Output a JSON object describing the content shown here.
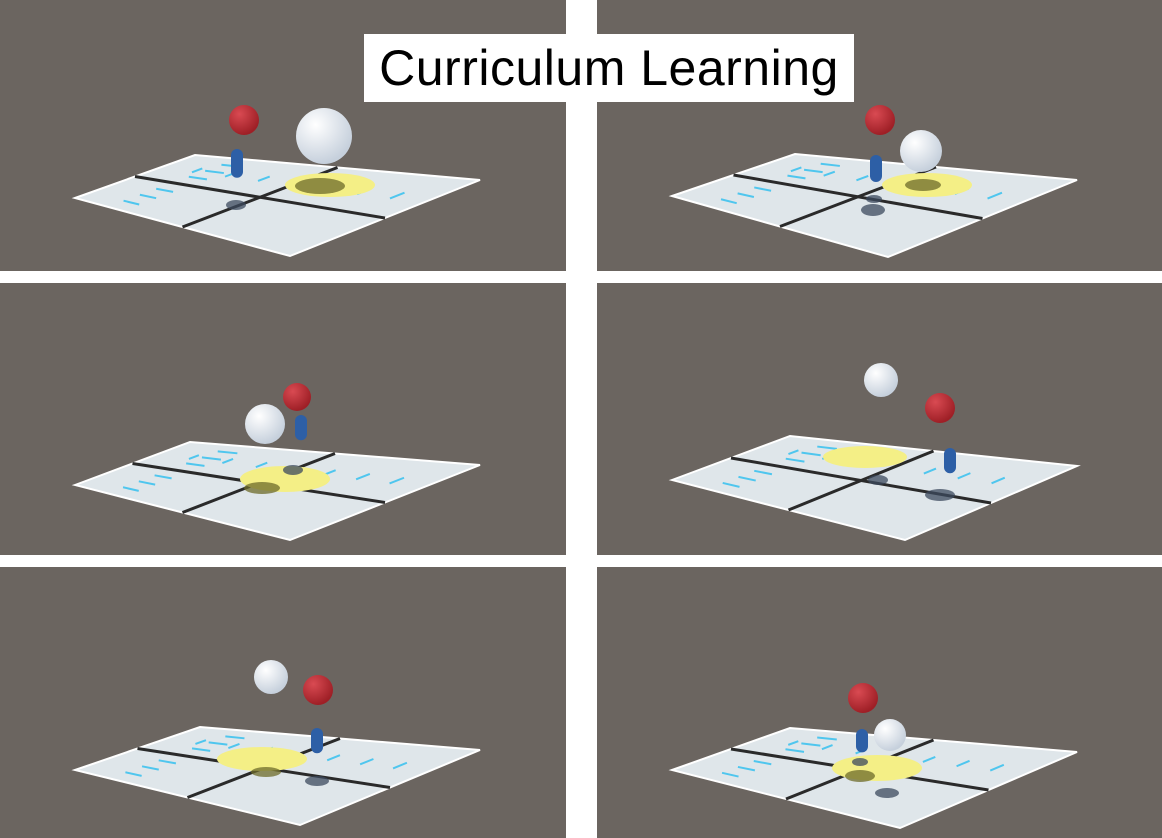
{
  "title": "Curriculum Learning",
  "colors": {
    "background": "#6b6560",
    "floor": "#dfe6ea",
    "floor_accent": "#4fc6ee",
    "goal_pad": "#f4ef86",
    "red_ball": "#9e1f26",
    "white_ball": "#c6d0dc",
    "agent": "#2d5fa6"
  },
  "panels": [
    {
      "id": "top-left"
    },
    {
      "id": "top-right"
    },
    {
      "id": "middle-left"
    },
    {
      "id": "middle-right"
    },
    {
      "id": "bottom-left"
    },
    {
      "id": "bottom-right"
    }
  ]
}
